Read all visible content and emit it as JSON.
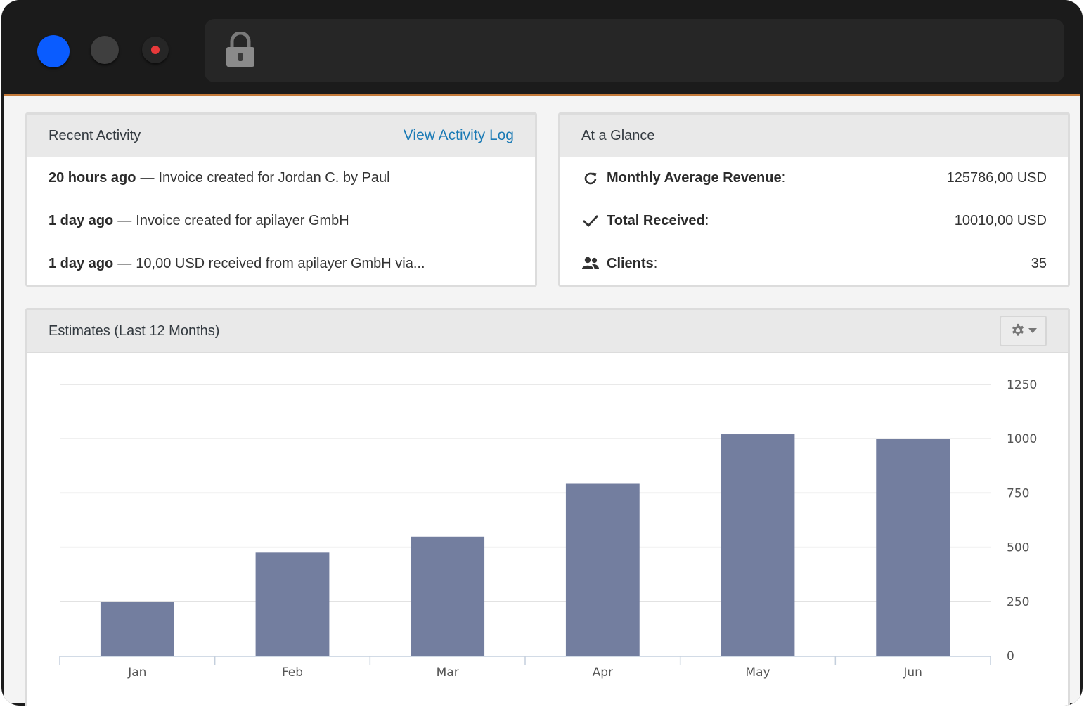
{
  "recent_activity": {
    "title": "Recent Activity",
    "link": "View Activity Log",
    "items": [
      {
        "time": "20 hours ago",
        "sep": "—",
        "text": "Invoice created for Jordan C. by Paul"
      },
      {
        "time": "1 day ago",
        "sep": "—",
        "text": "Invoice created for apilayer GmbH"
      },
      {
        "time": "1 day ago",
        "sep": "—",
        "text": "10,00 USD received from apilayer GmbH via..."
      }
    ]
  },
  "at_a_glance": {
    "title": "At a Glance",
    "items": [
      {
        "icon": "refresh-icon",
        "label": "Monthly Average Revenue",
        "colon": ":",
        "value": "125786,00 USD"
      },
      {
        "icon": "check-icon",
        "label": "Total Received",
        "colon": ":",
        "value": "10010,00 USD"
      },
      {
        "icon": "users-icon",
        "label": "Clients",
        "colon": ":",
        "value": "35"
      }
    ]
  },
  "estimates": {
    "title": "Estimates (Last 12 Months)",
    "settings_icon": "gear-icon"
  },
  "chart_data": {
    "type": "bar",
    "categories": [
      "Jan",
      "Feb",
      "Mar",
      "Apr",
      "May",
      "Jun"
    ],
    "values": [
      248,
      475,
      548,
      795,
      1020,
      998
    ],
    "ylim": [
      0,
      1250
    ],
    "yticks": [
      0,
      250,
      500,
      750,
      1000,
      1250
    ],
    "y_axis_side": "right",
    "grid": true,
    "bar_color": "#737e9f"
  },
  "colors": {
    "link": "#1a7ab5",
    "close_button": "#0a5cff",
    "record_dot": "#e8393a"
  }
}
